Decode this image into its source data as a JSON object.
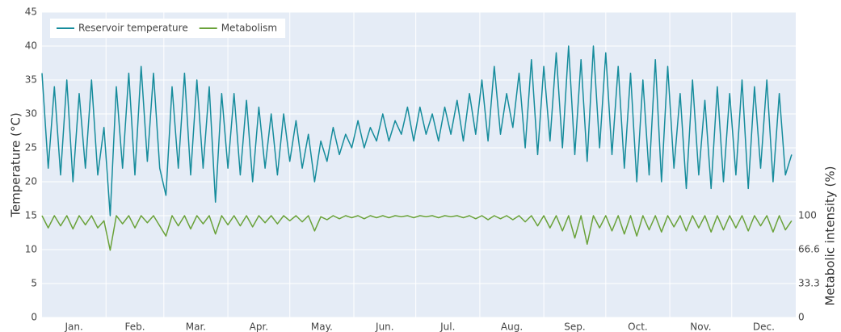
{
  "chart_data": {
    "type": "line",
    "y_label": "Temperature (°C)",
    "y2_label": "Metabolic intensity (%)",
    "x": [
      0,
      3,
      6,
      9,
      12,
      15,
      18,
      21,
      24,
      27,
      30,
      33,
      36,
      39,
      42,
      45,
      48,
      51,
      54,
      57,
      60,
      63,
      66,
      69,
      72,
      75,
      78,
      81,
      84,
      87,
      90,
      93,
      96,
      99,
      102,
      105,
      108,
      111,
      114,
      117,
      120,
      123,
      126,
      129,
      132,
      135,
      138,
      141,
      144,
      147,
      150,
      153,
      156,
      159,
      162,
      165,
      168,
      171,
      174,
      177,
      180,
      183,
      186,
      189,
      192,
      195,
      198,
      201,
      204,
      207,
      210,
      213,
      216,
      219,
      222,
      225,
      228,
      231,
      234,
      237,
      240,
      243,
      246,
      249,
      252,
      255,
      258,
      261,
      264,
      267,
      270,
      273,
      276,
      279,
      282,
      285,
      288,
      291,
      294,
      297,
      300,
      303,
      306,
      309,
      312,
      315,
      318,
      321,
      324,
      327,
      330,
      333,
      336,
      339,
      342,
      345,
      348,
      351,
      354,
      357,
      360,
      363
    ],
    "series": [
      {
        "name": "Reservoir temperature",
        "color": "#168c9c",
        "values": [
          36,
          22,
          34,
          21,
          35,
          20,
          33,
          22,
          35,
          21,
          28,
          15,
          34,
          22,
          36,
          21,
          37,
          23,
          36,
          22,
          18,
          34,
          22,
          36,
          21,
          35,
          22,
          34,
          17,
          33,
          22,
          33,
          21,
          32,
          20,
          31,
          22,
          30,
          21,
          30,
          23,
          29,
          22,
          27,
          20,
          26,
          23,
          28,
          24,
          27,
          25,
          29,
          25,
          28,
          26,
          30,
          26,
          29,
          27,
          31,
          26,
          31,
          27,
          30,
          26,
          31,
          27,
          32,
          26,
          33,
          27,
          35,
          26,
          37,
          27,
          33,
          28,
          36,
          25,
          38,
          24,
          37,
          26,
          39,
          25,
          40,
          24,
          38,
          23,
          40,
          25,
          39,
          24,
          37,
          22,
          36,
          20,
          35,
          21,
          38,
          20,
          37,
          22,
          33,
          19,
          35,
          21,
          32,
          19,
          34,
          20,
          33,
          21,
          35,
          19,
          34,
          22,
          35,
          20,
          33,
          21,
          24
        ]
      },
      {
        "name": "Metabolism",
        "color": "#6aa23a",
        "axis": "y2",
        "values": [
          100,
          88,
          100,
          90,
          100,
          87,
          100,
          91,
          100,
          88,
          95,
          66,
          100,
          92,
          100,
          88,
          100,
          93,
          100,
          90,
          80,
          100,
          90,
          100,
          87,
          100,
          92,
          100,
          82,
          100,
          91,
          100,
          90,
          100,
          89,
          100,
          93,
          100,
          92,
          100,
          95,
          100,
          94,
          100,
          85,
          99,
          96,
          100,
          97,
          100,
          98,
          100,
          97,
          100,
          98,
          100,
          98,
          100,
          99,
          100,
          98,
          100,
          99,
          100,
          98,
          100,
          99,
          100,
          98,
          100,
          97,
          100,
          96,
          100,
          97,
          100,
          96,
          100,
          94,
          100,
          90,
          100,
          88,
          100,
          85,
          100,
          78,
          100,
          72,
          100,
          88,
          100,
          85,
          100,
          82,
          100,
          80,
          100,
          86,
          100,
          84,
          100,
          89,
          100,
          85,
          100,
          88,
          100,
          84,
          100,
          86,
          100,
          88,
          100,
          85,
          100,
          90,
          100,
          84,
          100,
          86,
          95
        ]
      }
    ],
    "xlim": [
      0,
      365
    ],
    "xticks": [
      {
        "value": 15.5,
        "label": "Jan."
      },
      {
        "value": 45,
        "label": "Feb."
      },
      {
        "value": 74.5,
        "label": "Mar."
      },
      {
        "value": 105,
        "label": "Apr."
      },
      {
        "value": 135.5,
        "label": "May."
      },
      {
        "value": 166,
        "label": "Jun."
      },
      {
        "value": 196.5,
        "label": "Jul."
      },
      {
        "value": 227.5,
        "label": "Aug."
      },
      {
        "value": 258,
        "label": "Sep."
      },
      {
        "value": 288.5,
        "label": "Oct."
      },
      {
        "value": 319,
        "label": "Nov."
      },
      {
        "value": 349.5,
        "label": "Dec."
      }
    ],
    "x_gridlines": [
      31,
      59,
      90,
      120,
      151,
      181,
      212,
      243,
      273,
      304,
      334
    ],
    "ylim": [
      0,
      45
    ],
    "yticks": [
      0,
      5,
      10,
      15,
      20,
      25,
      30,
      35,
      40,
      45
    ],
    "y2lim": [
      0,
      300
    ],
    "y2ticks": [
      0,
      33.3,
      66.6,
      100
    ],
    "grid": true,
    "legend": "top-left"
  }
}
